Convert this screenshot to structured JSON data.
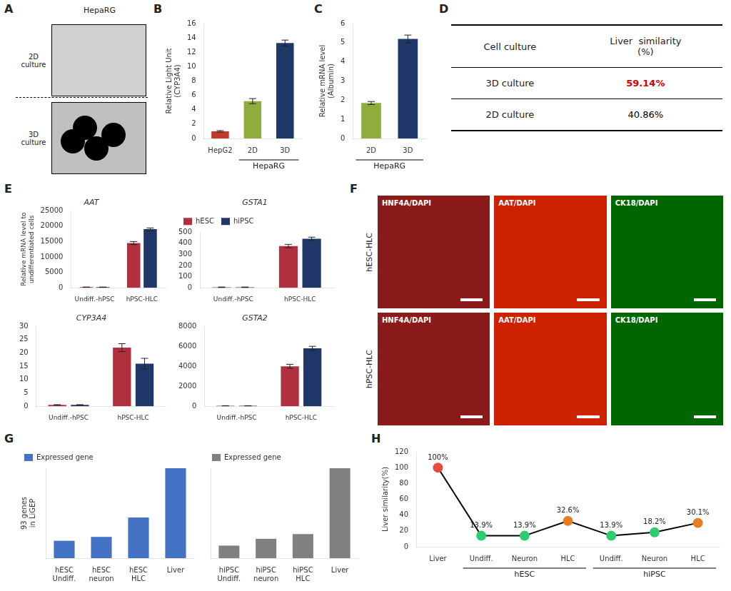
{
  "chart_data": [
    {
      "type": "image",
      "title": "HepaRG",
      "categories": [
        "2D\nculture",
        "3D\nculture"
      ],
      "annotations": [
        "A"
      ]
    },
    {
      "type": "bar",
      "categories": [
        "HepG2",
        "2D",
        "3D"
      ],
      "values": [
        1.0,
        5.2,
        13.3
      ],
      "errors": [
        0.1,
        0.35,
        0.4
      ],
      "colors": [
        "#c0392b",
        "#8fad3f",
        "#1f3869"
      ],
      "ylabel": "Relative Light Unit\n(CYP3A4)",
      "xlabel": "HepaRG",
      "ylim": [
        0,
        16
      ],
      "yticks": [
        0,
        2,
        4,
        6,
        8,
        10,
        12,
        14,
        16
      ],
      "grid": false,
      "annotations": [
        "B"
      ]
    },
    {
      "type": "bar",
      "categories": [
        "2D",
        "3D"
      ],
      "values": [
        1.85,
        5.2
      ],
      "errors": [
        0.08,
        0.2
      ],
      "colors": [
        "#8fad3f",
        "#1f3869"
      ],
      "ylabel": "Relative mRNA level\n(Albumin)",
      "xlabel": "HepaRG",
      "ylim": [
        0,
        6
      ],
      "yticks": [
        0,
        1,
        2,
        3,
        4,
        5,
        6
      ],
      "grid": false,
      "annotations": [
        "C"
      ]
    },
    {
      "type": "table",
      "columns": [
        "Cell culture",
        "Liver  similarity\n(%)"
      ],
      "rows": [
        [
          "3D culture",
          "59.14%"
        ],
        [
          "2D culture",
          "40.86%"
        ]
      ],
      "colors": [
        "#cc0000",
        "#000000"
      ],
      "annotations": [
        "D"
      ]
    },
    {
      "type": "bar",
      "title": "AAT",
      "categories": [
        "Undiff.-hPSC",
        "hPSC-HLC"
      ],
      "series": [
        {
          "name": "hESC",
          "color": "#b03040",
          "values": [
            200,
            14500
          ],
          "errors": [
            50,
            500
          ]
        },
        {
          "name": "hiPSC",
          "color": "#1f3869",
          "values": [
            200,
            19000
          ],
          "errors": [
            50,
            400
          ]
        }
      ],
      "ylabel": "Relative mRNA level to\nundifferentiated cells",
      "ylim": [
        0,
        25000
      ],
      "yticks": [
        0,
        5000,
        10000,
        15000,
        20000,
        25000
      ],
      "grid": false,
      "annotations": [
        "E"
      ]
    },
    {
      "type": "bar",
      "title": "GSTA1",
      "categories": [
        "Undiff.-hPSC",
        "hPSC-HLC"
      ],
      "series": [
        {
          "name": "hESC",
          "color": "#b03040",
          "values": [
            5,
            375
          ],
          "errors": [
            2,
            15
          ]
        },
        {
          "name": "hiPSC",
          "color": "#1f3869",
          "values": [
            5,
            440
          ],
          "errors": [
            2,
            15
          ]
        }
      ],
      "ylim": [
        0,
        500
      ],
      "yticks": [
        0,
        100,
        200,
        300,
        400,
        500
      ],
      "grid": false,
      "legend": "top"
    },
    {
      "type": "bar",
      "title": "CYP3A4",
      "categories": [
        "Undiff.-hPSC",
        "hPSC-HLC"
      ],
      "series": [
        {
          "name": "hESC",
          "color": "#b03040",
          "values": [
            0.5,
            22
          ],
          "errors": [
            0.1,
            1.5
          ]
        },
        {
          "name": "hiPSC",
          "color": "#1f3869",
          "values": [
            0.5,
            16
          ],
          "errors": [
            0.1,
            2
          ]
        }
      ],
      "ylim": [
        0,
        30
      ],
      "yticks": [
        0,
        5,
        10,
        15,
        20,
        25,
        30
      ],
      "grid": false
    },
    {
      "type": "bar",
      "title": "GSTA2",
      "categories": [
        "Undiff.-hPSC",
        "hPSC-HLC"
      ],
      "series": [
        {
          "name": "hESC",
          "color": "#b03040",
          "values": [
            50,
            4000
          ],
          "errors": [
            10,
            200
          ]
        },
        {
          "name": "hiPSC",
          "color": "#1f3869",
          "values": [
            50,
            5800
          ],
          "errors": [
            10,
            200
          ]
        }
      ],
      "ylim": [
        0,
        8000
      ],
      "yticks": [
        0,
        2000,
        4000,
        6000,
        8000
      ],
      "grid": false
    },
    {
      "type": "image",
      "rows": [
        "hESC-HLC",
        "hPSC-HLC"
      ],
      "columns": [
        "HNF4A/DAPI",
        "AAT/DAPI",
        "CK18/DAPI"
      ],
      "colors": [
        "#8B1A1A",
        "#CC2200",
        "#006600"
      ],
      "annotations": [
        "F"
      ]
    },
    {
      "type": "bar",
      "categories": [
        "hESC\nUndiff.",
        "hESC\nneuron",
        "hESC\nHLC",
        "Liver"
      ],
      "series": [
        {
          "name": "Expressed gene",
          "color": "#4472c4",
          "values": [
            18,
            22,
            42,
            93
          ]
        }
      ],
      "ylabel": "93 genes\nin LiGEP",
      "ylim": [
        0,
        93
      ],
      "tick_labels": "x",
      "legend": "top",
      "grid": false,
      "annotations": [
        "G"
      ]
    },
    {
      "type": "bar",
      "categories": [
        "hiPSC\nUndiff.",
        "hiPSC\nneuron",
        "hiPSC\nHLC",
        "Liver"
      ],
      "series": [
        {
          "name": "Expressed gene",
          "color": "#808080",
          "values": [
            13,
            20,
            25,
            93
          ]
        }
      ],
      "ylim": [
        0,
        93
      ],
      "tick_labels": "x",
      "legend": "top",
      "grid": false
    },
    {
      "type": "line",
      "categories": [
        "Liver",
        "Undiff.",
        "Neuron",
        "HLC",
        "Undiff.",
        "Neuron",
        "HLC"
      ],
      "values": [
        100.0,
        13.9,
        13.9,
        32.6,
        13.9,
        18.2,
        30.1
      ],
      "value_labels": [
        "100%",
        "13.9%",
        "13.9%",
        "32.6%",
        "13.9%",
        "18.2%",
        "30.1%"
      ],
      "data_labels": true,
      "color": "#000000",
      "colors": [
        "#e74c3c",
        "#2ecc71",
        "#2ecc71",
        "#e67e22",
        "#2ecc71",
        "#2ecc71",
        "#e67e22"
      ],
      "ylabel": "Liver similarity(%)",
      "ylim": [
        0,
        120
      ],
      "yticks": [
        0,
        20,
        40,
        60,
        80,
        100,
        120
      ],
      "grid": false,
      "annotations": [
        "H",
        "hESC",
        "hiPSC"
      ]
    }
  ]
}
